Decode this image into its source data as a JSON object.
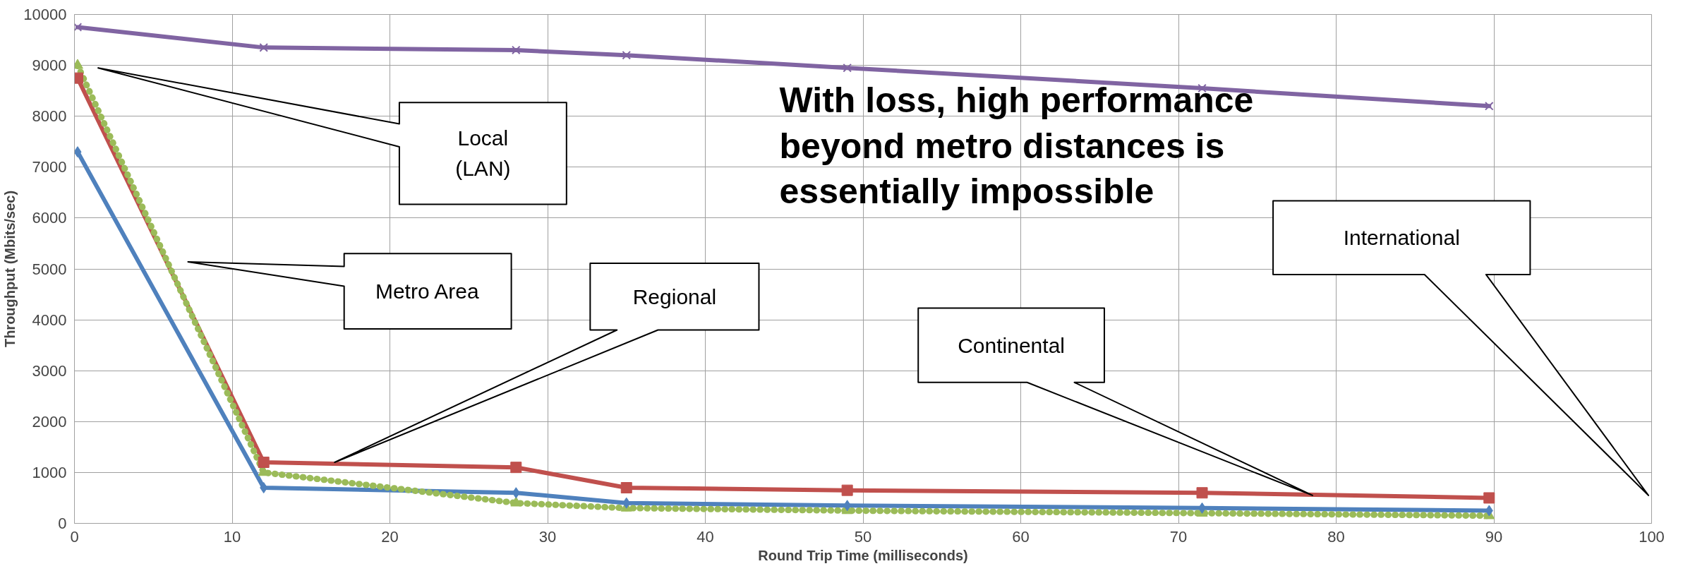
{
  "chart_data": {
    "type": "line",
    "xlabel": "Round Trip Time (milliseconds)",
    "ylabel": "Throughput (Mbits/sec)",
    "x": [
      0.2,
      12,
      28,
      35,
      49,
      71.5,
      89.7
    ],
    "series": [
      {
        "color": "#8064a2",
        "marker": "cross",
        "line_style": "solid",
        "values": [
          9750,
          9350,
          9300,
          9200,
          8950,
          8550,
          8200
        ]
      },
      {
        "color": "#c0504d",
        "marker": "square",
        "line_style": "solid",
        "values": [
          8750,
          1200,
          1100,
          700,
          650,
          600,
          500
        ]
      },
      {
        "color": "#4f81bd",
        "marker": "diamond",
        "line_style": "solid",
        "values": [
          7300,
          700,
          600,
          400,
          350,
          300,
          250
        ]
      },
      {
        "color": "#9bbb59",
        "marker": "triangle",
        "line_style": "dotted",
        "values": [
          9000,
          1000,
          400,
          300,
          250,
          200,
          150
        ]
      }
    ],
    "xlim": [
      0,
      100
    ],
    "xticks": [
      0,
      10,
      20,
      30,
      40,
      50,
      60,
      70,
      80,
      90,
      100
    ],
    "ylim": [
      0,
      10000
    ],
    "yticks": [
      0,
      1000,
      2000,
      3000,
      4000,
      5000,
      6000,
      7000,
      8000,
      9000,
      10000
    ],
    "grid": true,
    "annotations": [
      "Local (LAN)",
      "Metro Area",
      "Regional",
      "Continental",
      "International",
      "With loss, high performance beyond metro distances is essentially impossible"
    ]
  }
}
